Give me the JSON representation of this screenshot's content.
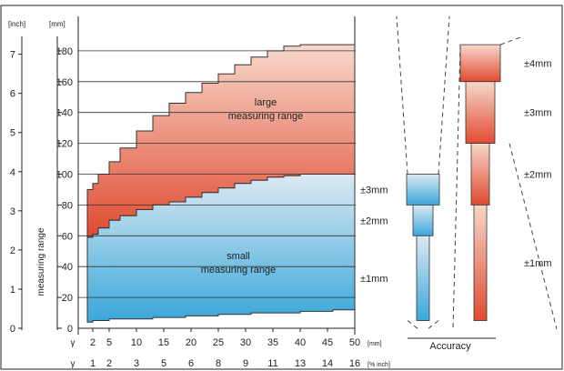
{
  "chart_data": {
    "type": "area",
    "unit_inch": "[inch]",
    "unit_mm": "[mm]",
    "ylabel": "measuring range",
    "y_mm_ticks": [
      0,
      20,
      40,
      60,
      80,
      100,
      120,
      140,
      160,
      180
    ],
    "y_inch_ticks": [
      "0",
      "1",
      "2",
      "3",
      "4",
      "5",
      "6",
      "7"
    ],
    "ylim_mm": [
      0,
      185
    ],
    "xlim_mm": [
      0,
      50
    ],
    "x_row1_prefix": "γ",
    "x_row1_ticks": [
      2,
      5,
      10,
      15,
      20,
      25,
      30,
      35,
      40,
      45,
      50
    ],
    "x_row1_unit": "[mm]",
    "x_row2_prefix": "γ",
    "x_row2_ticks": [
      "1",
      "2",
      "3",
      "5",
      "6",
      "8",
      "9",
      "11",
      "13",
      "14",
      "16"
    ],
    "x_row2_unit": "[% inch]",
    "series": [
      {
        "name": "small measuring range",
        "label": [
          "small",
          "measuring range"
        ],
        "fill_top": "#dce9f2",
        "fill_bottom": "#3aa7da",
        "x": [
          1,
          2,
          3,
          5,
          7,
          10,
          13,
          16,
          19,
          22,
          25,
          28,
          31,
          34,
          37,
          40,
          43,
          46,
          50
        ],
        "upper": [
          59,
          61,
          65,
          70,
          73,
          77,
          80,
          82,
          85,
          88,
          91,
          94,
          96,
          98,
          99,
          100,
          100,
          100,
          100
        ],
        "lower": [
          4,
          5,
          5,
          6,
          6,
          6,
          7,
          7,
          8,
          8,
          9,
          9,
          10,
          10,
          10,
          11,
          11,
          12,
          12
        ]
      },
      {
        "name": "large measuring range",
        "label": [
          "large",
          "measuring range"
        ],
        "fill_top": "#f7d8cb",
        "fill_bottom": "#e04a30",
        "x": [
          1,
          2,
          3,
          5,
          7,
          10,
          13,
          16,
          19,
          22,
          25,
          28,
          31,
          34,
          37,
          40,
          43,
          46,
          50
        ],
        "upper": [
          90,
          94,
          100,
          108,
          117,
          128,
          138,
          146,
          153,
          159,
          165,
          171,
          176,
          180,
          183,
          184,
          184,
          184,
          184
        ],
        "lower": [
          59,
          61,
          65,
          70,
          73,
          77,
          80,
          82,
          85,
          88,
          91,
          94,
          96,
          98,
          99,
          100,
          100,
          100,
          100
        ]
      }
    ],
    "accuracy": {
      "title": "Accuracy",
      "small": [
        {
          "label": "±3mm",
          "from": 80,
          "to": 100
        },
        {
          "label": "±2mm",
          "from": 60,
          "to": 80
        },
        {
          "label": "±1mm",
          "from": 5,
          "to": 60
        }
      ],
      "large": [
        {
          "label": "±4mm",
          "from": 160,
          "to": 184
        },
        {
          "label": "±3mm",
          "from": 120,
          "to": 160
        },
        {
          "label": "±2mm",
          "from": 80,
          "to": 120
        },
        {
          "label": "±1mm",
          "from": 5,
          "to": 80
        }
      ]
    },
    "grid": true,
    "colors": {
      "grid": "#333333",
      "axis": "#222222",
      "text": "#222222"
    }
  }
}
